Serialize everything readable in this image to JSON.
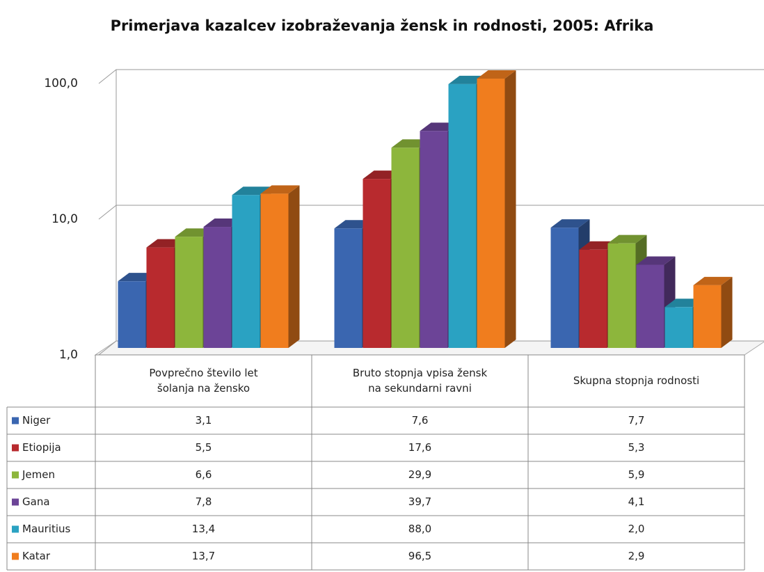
{
  "chart_data": {
    "type": "bar",
    "title": "Primerjava kazalcev izobraževanja žensk in rodnosti, 2005: Afrika",
    "categories": [
      [
        "Povprečno število let",
        "šolanja na žensko"
      ],
      [
        "Bruto stopnja vpisa žensk",
        "na sekundarni ravni"
      ],
      [
        "Skupna stopnja rodnosti"
      ]
    ],
    "log_scale": true,
    "grid": true,
    "ylim": [
      1,
      100
    ],
    "yticks": [
      {
        "value": 1,
        "label": "1,0"
      },
      {
        "value": 10,
        "label": "10,0"
      },
      {
        "value": 100,
        "label": "100,0"
      }
    ],
    "series": [
      {
        "name": "Niger",
        "color": "#3a66b0",
        "values": [
          3.1,
          7.6,
          7.7
        ],
        "value_labels": [
          "3,1",
          "7,6",
          "7,7"
        ]
      },
      {
        "name": "Etiopija",
        "color": "#b82a2e",
        "values": [
          5.5,
          17.6,
          5.3
        ],
        "value_labels": [
          "5,5",
          "17,6",
          "5,3"
        ]
      },
      {
        "name": "Jemen",
        "color": "#8db63c",
        "values": [
          6.6,
          29.9,
          5.9
        ],
        "value_labels": [
          "6,6",
          "29,9",
          "5,9"
        ]
      },
      {
        "name": "Gana",
        "color": "#6c4497",
        "values": [
          7.8,
          39.7,
          4.1
        ],
        "value_labels": [
          "7,8",
          "39,7",
          "4,1"
        ]
      },
      {
        "name": "Mauritius",
        "color": "#2aa2c2",
        "values": [
          13.4,
          88.0,
          2.0
        ],
        "value_labels": [
          "13,4",
          "88,0",
          "2,0"
        ]
      },
      {
        "name": "Katar",
        "color": "#f07d1e",
        "values": [
          13.7,
          96.5,
          2.9
        ],
        "value_labels": [
          "13,7",
          "96,5",
          "2,9"
        ]
      }
    ]
  }
}
